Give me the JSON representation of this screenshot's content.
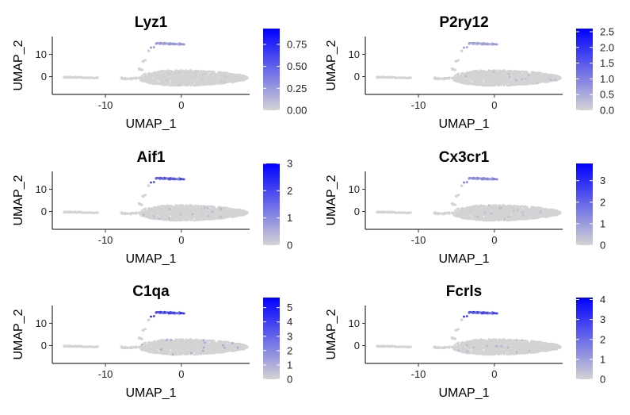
{
  "chart_data": [
    {
      "type": "scatter",
      "title": "Lyz1",
      "xlabel": "UMAP_1",
      "ylabel": "UMAP_2",
      "x_ticks": [
        -10,
        0
      ],
      "y_ticks": [
        0,
        10
      ],
      "xlim": [
        -17,
        9
      ],
      "ylim": [
        -8,
        18
      ],
      "colorbar_ticks": [
        "0.00",
        "0.25",
        "0.50",
        "0.75"
      ],
      "color_max": 0.93,
      "colors": {
        "low": "#d3d3d3",
        "high": "#0000ff"
      },
      "high_cluster_level": 0.35,
      "scatter_level": 0.05
    },
    {
      "type": "scatter",
      "title": "P2ry12",
      "xlabel": "UMAP_1",
      "ylabel": "UMAP_2",
      "x_ticks": [
        -10,
        0
      ],
      "y_ticks": [
        0,
        10
      ],
      "xlim": [
        -17,
        9
      ],
      "ylim": [
        -8,
        18
      ],
      "colorbar_ticks": [
        "0.0",
        "0.5",
        "1.0",
        "1.5",
        "2.0",
        "2.5"
      ],
      "color_max": 2.6,
      "colors": {
        "low": "#d3d3d3",
        "high": "#0000ff"
      },
      "high_cluster_level": 0.3,
      "scatter_level": 0.1
    },
    {
      "type": "scatter",
      "title": "Aif1",
      "xlabel": "UMAP_1",
      "ylabel": "UMAP_2",
      "x_ticks": [
        -10,
        0
      ],
      "y_ticks": [
        0,
        10
      ],
      "xlim": [
        -17,
        9
      ],
      "ylim": [
        -8,
        18
      ],
      "colorbar_ticks": [
        "0",
        "1",
        "2",
        "3"
      ],
      "color_max": 3.0,
      "colors": {
        "low": "#d3d3d3",
        "high": "#0000ff"
      },
      "high_cluster_level": 0.75,
      "scatter_level": 0.12
    },
    {
      "type": "scatter",
      "title": "Cx3cr1",
      "xlabel": "UMAP_1",
      "ylabel": "UMAP_2",
      "x_ticks": [
        -10,
        0
      ],
      "y_ticks": [
        0,
        10
      ],
      "xlim": [
        -17,
        9
      ],
      "ylim": [
        -8,
        18
      ],
      "colorbar_ticks": [
        "0",
        "1",
        "2",
        "3"
      ],
      "color_max": 3.8,
      "colors": {
        "low": "#d3d3d3",
        "high": "#0000ff"
      },
      "high_cluster_level": 0.45,
      "scatter_level": 0.1
    },
    {
      "type": "scatter",
      "title": "C1qa",
      "xlabel": "UMAP_1",
      "ylabel": "UMAP_2",
      "x_ticks": [
        -10,
        0
      ],
      "y_ticks": [
        0,
        10
      ],
      "xlim": [
        -17,
        9
      ],
      "ylim": [
        -8,
        18
      ],
      "colorbar_ticks": [
        "0",
        "1",
        "2",
        "3",
        "4",
        "5"
      ],
      "color_max": 5.7,
      "colors": {
        "low": "#d3d3d3",
        "high": "#0000ff"
      },
      "high_cluster_level": 0.85,
      "scatter_level": 0.2
    },
    {
      "type": "scatter",
      "title": "Fcrls",
      "xlabel": "UMAP_1",
      "ylabel": "UMAP_2",
      "x_ticks": [
        -10,
        0
      ],
      "y_ticks": [
        0,
        10
      ],
      "xlim": [
        -17,
        9
      ],
      "ylim": [
        -8,
        18
      ],
      "colorbar_ticks": [
        "0",
        "1",
        "2",
        "3",
        "4"
      ],
      "color_max": 4.1,
      "colors": {
        "low": "#d3d3d3",
        "high": "#0000ff"
      },
      "high_cluster_level": 0.8,
      "scatter_level": 0.12
    }
  ]
}
